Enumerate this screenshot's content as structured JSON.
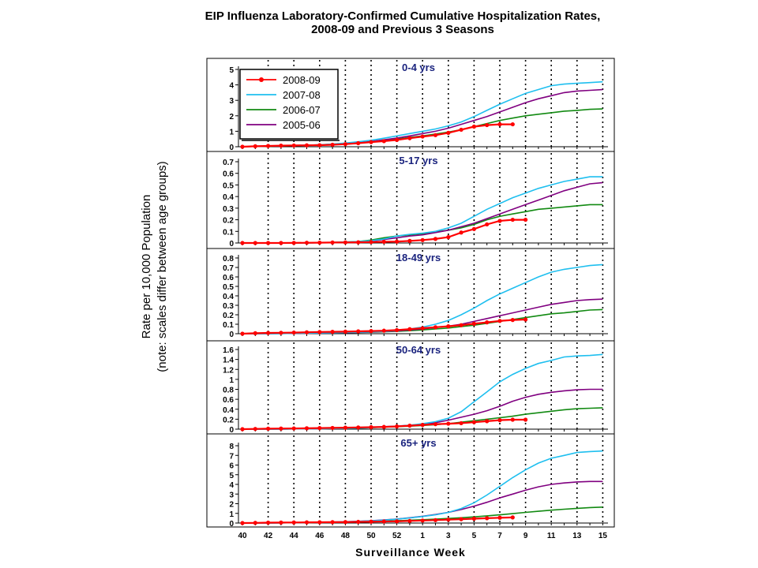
{
  "figure": {
    "title_line1": "EIP Influenza Laboratory-Confirmed Cumulative Hospitalization Rates,",
    "title_line2": "2008-09 and Previous 3 Seasons",
    "ylabel_line1": "Rate per 10,000 Population",
    "ylabel_line2": "(note: scales differ between age groups)",
    "xlabel": "Surveillance Week"
  },
  "chart_data": {
    "type": "line",
    "x_weeks": [
      40,
      41,
      42,
      43,
      44,
      45,
      46,
      47,
      48,
      49,
      50,
      51,
      52,
      1,
      2,
      3,
      4,
      5,
      6,
      7,
      8,
      9,
      10,
      11,
      12,
      13,
      14,
      15,
      16
    ],
    "x_tick_labels": [
      "40",
      "42",
      "44",
      "46",
      "48",
      "50",
      "52",
      "1",
      "3",
      "5",
      "7",
      "9",
      "11",
      "13",
      "15"
    ],
    "legend_entries": [
      "2008-09",
      "2007-08",
      "2006-07",
      "2005-06"
    ],
    "series_colors": {
      "2008-09": "#ff0000",
      "2007-08": "#1fbfef",
      "2006-07": "#128a12",
      "2005-06": "#800080"
    },
    "legend_position": "top-left of first panel",
    "grid": "vertical dotted lines every 2 weeks",
    "panels": [
      {
        "label": "0-4 yrs",
        "ylim": [
          0,
          5
        ],
        "yticks": [
          "0",
          "1",
          "2",
          "3",
          "4",
          "5"
        ],
        "series": [
          {
            "name": "2008-09",
            "values": [
              0,
              0.03,
              0.05,
              0.07,
              0.08,
              0.09,
              0.1,
              0.13,
              0.17,
              0.23,
              0.3,
              0.36,
              0.44,
              0.55,
              0.66,
              0.75,
              0.9,
              1.1,
              1.3,
              1.4,
              1.45,
              1.45
            ]
          },
          {
            "name": "2007-08",
            "values": [
              0,
              0.02,
              0.04,
              0.06,
              0.08,
              0.1,
              0.13,
              0.18,
              0.24,
              0.32,
              0.42,
              0.55,
              0.7,
              0.85,
              1.0,
              1.15,
              1.35,
              1.6,
              1.95,
              2.35,
              2.75,
              3.1,
              3.45,
              3.7,
              3.95,
              4.05,
              4.1,
              4.15,
              4.2
            ]
          },
          {
            "name": "2006-07",
            "values": [
              0,
              0.02,
              0.03,
              0.05,
              0.07,
              0.09,
              0.12,
              0.16,
              0.2,
              0.26,
              0.33,
              0.42,
              0.5,
              0.6,
              0.7,
              0.82,
              0.95,
              1.1,
              1.3,
              1.5,
              1.7,
              1.85,
              2.0,
              2.1,
              2.2,
              2.3,
              2.35,
              2.42,
              2.45
            ]
          },
          {
            "name": "2005-06",
            "values": [
              0,
              0.02,
              0.04,
              0.06,
              0.08,
              0.1,
              0.12,
              0.16,
              0.2,
              0.26,
              0.34,
              0.45,
              0.56,
              0.7,
              0.85,
              1.0,
              1.2,
              1.45,
              1.7,
              1.95,
              2.25,
              2.55,
              2.85,
              3.1,
              3.3,
              3.5,
              3.6,
              3.65,
              3.7
            ]
          }
        ]
      },
      {
        "label": "5-17 yrs",
        "ylim": [
          0,
          0.7
        ],
        "yticks": [
          "0",
          "0.1",
          "0.2",
          "0.3",
          "0.4",
          "0.5",
          "0.6",
          "0.7"
        ],
        "series": [
          {
            "name": "2008-09",
            "values": [
              0,
              0,
              0,
              0,
              0.001,
              0.002,
              0.003,
              0.004,
              0.005,
              0.006,
              0.008,
              0.01,
              0.012,
              0.018,
              0.025,
              0.035,
              0.05,
              0.09,
              0.12,
              0.16,
              0.19,
              0.2,
              0.2
            ]
          },
          {
            "name": "2007-08",
            "values": [
              0,
              0,
              0,
              0,
              0,
              0.001,
              0.003,
              0.005,
              0.008,
              0.012,
              0.02,
              0.035,
              0.06,
              0.075,
              0.085,
              0.1,
              0.13,
              0.17,
              0.23,
              0.29,
              0.34,
              0.39,
              0.43,
              0.47,
              0.5,
              0.53,
              0.55,
              0.57,
              0.57
            ]
          },
          {
            "name": "2006-07",
            "values": [
              0,
              0,
              0,
              0,
              0,
              0.001,
              0.003,
              0.005,
              0.008,
              0.012,
              0.025,
              0.045,
              0.06,
              0.07,
              0.08,
              0.095,
              0.11,
              0.13,
              0.16,
              0.2,
              0.23,
              0.25,
              0.27,
              0.29,
              0.3,
              0.31,
              0.32,
              0.33,
              0.33
            ]
          },
          {
            "name": "2005-06",
            "values": [
              0,
              0,
              0,
              0,
              0,
              0.001,
              0.002,
              0.004,
              0.006,
              0.01,
              0.018,
              0.03,
              0.045,
              0.06,
              0.07,
              0.09,
              0.11,
              0.14,
              0.17,
              0.21,
              0.25,
              0.29,
              0.33,
              0.37,
              0.41,
              0.45,
              0.48,
              0.51,
              0.52
            ]
          }
        ]
      },
      {
        "label": "18-49 yrs",
        "ylim": [
          0,
          0.8
        ],
        "yticks": [
          "0",
          "0.1",
          "0.2",
          "0.3",
          "0.4",
          "0.5",
          "0.6",
          "0.7",
          "0.8"
        ],
        "series": [
          {
            "name": "2008-09",
            "values": [
              0,
              0.005,
              0.008,
              0.01,
              0.012,
              0.015,
              0.018,
              0.02,
              0.022,
              0.025,
              0.028,
              0.032,
              0.038,
              0.048,
              0.058,
              0.068,
              0.078,
              0.09,
              0.105,
              0.12,
              0.135,
              0.145,
              0.15
            ]
          },
          {
            "name": "2007-08",
            "values": [
              0,
              0,
              0,
              0.002,
              0.004,
              0.006,
              0.008,
              0.01,
              0.013,
              0.016,
              0.02,
              0.025,
              0.035,
              0.05,
              0.07,
              0.1,
              0.14,
              0.2,
              0.27,
              0.35,
              0.42,
              0.48,
              0.54,
              0.6,
              0.65,
              0.68,
              0.7,
              0.72,
              0.73
            ]
          },
          {
            "name": "2006-07",
            "values": [
              0,
              0,
              0,
              0.002,
              0.003,
              0.005,
              0.007,
              0.009,
              0.011,
              0.013,
              0.016,
              0.02,
              0.025,
              0.032,
              0.04,
              0.05,
              0.06,
              0.075,
              0.09,
              0.11,
              0.13,
              0.15,
              0.17,
              0.19,
              0.21,
              0.22,
              0.235,
              0.25,
              0.255
            ]
          },
          {
            "name": "2005-06",
            "values": [
              0,
              0,
              0,
              0.002,
              0.003,
              0.005,
              0.007,
              0.009,
              0.011,
              0.014,
              0.018,
              0.023,
              0.03,
              0.04,
              0.05,
              0.065,
              0.08,
              0.1,
              0.13,
              0.16,
              0.19,
              0.22,
              0.25,
              0.28,
              0.31,
              0.33,
              0.35,
              0.36,
              0.365
            ]
          }
        ]
      },
      {
        "label": "50-64 yrs",
        "ylim": [
          0,
          1.6
        ],
        "yticks": [
          "0",
          "0.2",
          "0.4",
          "0.6",
          "0.8",
          "1",
          "1.2",
          "1.4",
          "1.6"
        ],
        "series": [
          {
            "name": "2008-09",
            "values": [
              0,
              0.005,
              0.01,
              0.012,
              0.015,
              0.018,
              0.022,
              0.025,
              0.03,
              0.035,
              0.04,
              0.045,
              0.055,
              0.07,
              0.085,
              0.1,
              0.11,
              0.12,
              0.14,
              0.16,
              0.18,
              0.19,
              0.19
            ]
          },
          {
            "name": "2007-08",
            "values": [
              0,
              0,
              0,
              0.002,
              0.004,
              0.006,
              0.008,
              0.012,
              0.016,
              0.02,
              0.03,
              0.045,
              0.06,
              0.08,
              0.11,
              0.15,
              0.22,
              0.35,
              0.55,
              0.75,
              0.95,
              1.1,
              1.22,
              1.32,
              1.38,
              1.45,
              1.47,
              1.48,
              1.5
            ]
          },
          {
            "name": "2006-07",
            "values": [
              0,
              0,
              0,
              0.002,
              0.004,
              0.006,
              0.008,
              0.012,
              0.016,
              0.02,
              0.03,
              0.04,
              0.05,
              0.06,
              0.075,
              0.09,
              0.11,
              0.14,
              0.17,
              0.2,
              0.23,
              0.26,
              0.3,
              0.33,
              0.36,
              0.39,
              0.41,
              0.42,
              0.43
            ]
          },
          {
            "name": "2005-06",
            "values": [
              0,
              0,
              0,
              0.002,
              0.004,
              0.006,
              0.01,
              0.015,
              0.02,
              0.03,
              0.04,
              0.05,
              0.06,
              0.08,
              0.1,
              0.13,
              0.18,
              0.24,
              0.3,
              0.37,
              0.46,
              0.56,
              0.64,
              0.7,
              0.74,
              0.77,
              0.79,
              0.8,
              0.8
            ]
          }
        ]
      },
      {
        "label": "65+ yrs",
        "ylim": [
          0,
          8
        ],
        "yticks": [
          "0",
          "1",
          "2",
          "3",
          "4",
          "5",
          "6",
          "7",
          "8"
        ],
        "series": [
          {
            "name": "2008-09",
            "values": [
              0,
              0.02,
              0.04,
              0.05,
              0.06,
              0.07,
              0.08,
              0.09,
              0.1,
              0.12,
              0.14,
              0.16,
              0.18,
              0.22,
              0.26,
              0.3,
              0.35,
              0.4,
              0.45,
              0.5,
              0.55,
              0.58
            ]
          },
          {
            "name": "2007-08",
            "values": [
              0,
              0,
              0.01,
              0.02,
              0.04,
              0.06,
              0.08,
              0.1,
              0.13,
              0.17,
              0.22,
              0.3,
              0.4,
              0.52,
              0.68,
              0.85,
              1.1,
              1.5,
              2.1,
              2.9,
              3.8,
              4.7,
              5.5,
              6.2,
              6.7,
              7.0,
              7.3,
              7.4,
              7.45
            ]
          },
          {
            "name": "2006-07",
            "values": [
              0,
              0,
              0.01,
              0.02,
              0.03,
              0.05,
              0.07,
              0.09,
              0.11,
              0.14,
              0.17,
              0.2,
              0.24,
              0.29,
              0.34,
              0.4,
              0.47,
              0.55,
              0.64,
              0.74,
              0.85,
              0.97,
              1.1,
              1.22,
              1.33,
              1.43,
              1.52,
              1.6,
              1.65
            ]
          },
          {
            "name": "2005-06",
            "values": [
              0,
              0,
              0.01,
              0.02,
              0.04,
              0.06,
              0.08,
              0.1,
              0.14,
              0.18,
              0.24,
              0.32,
              0.42,
              0.55,
              0.7,
              0.88,
              1.1,
              1.4,
              1.75,
              2.15,
              2.6,
              3.0,
              3.4,
              3.75,
              4.0,
              4.15,
              4.25,
              4.3,
              4.3
            ]
          }
        ]
      }
    ]
  }
}
